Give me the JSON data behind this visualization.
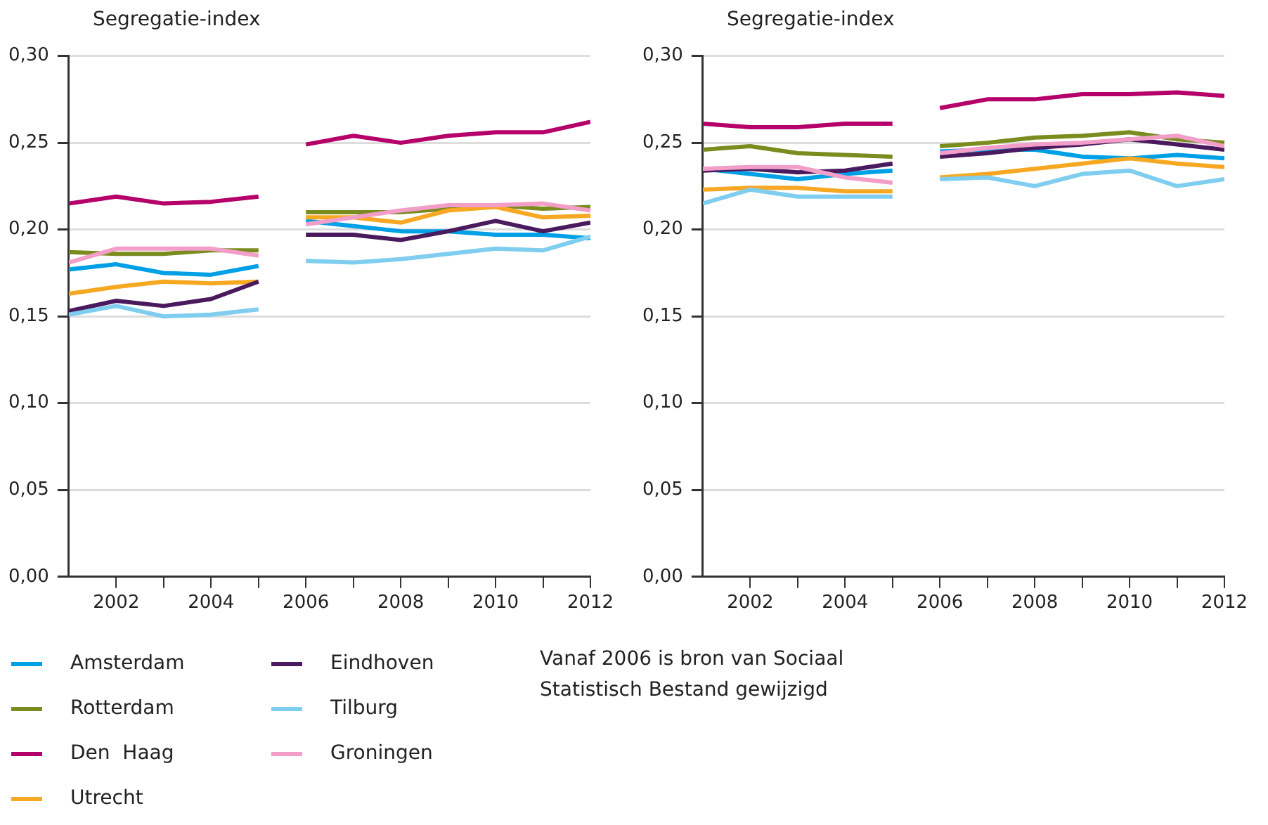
{
  "chart_data": [
    {
      "type": "line",
      "ylabel": "Segregatie-index",
      "x": [
        2001,
        2002,
        2003,
        2004,
        2005,
        2005.5,
        2006,
        2007,
        2008,
        2009,
        2010,
        2011,
        2012
      ],
      "xlim": [
        2001,
        2012
      ],
      "xticks": [
        2002,
        {
          "value": 2003,
          "label": null
        },
        2004,
        {
          "value": 2005,
          "label": null
        },
        2006,
        {
          "value": 2007,
          "label": null
        },
        2008,
        {
          "value": 2009,
          "label": null
        },
        2010,
        {
          "value": 2011,
          "label": null
        },
        2012
      ],
      "ylim": [
        0,
        0.3
      ],
      "yticks": [
        {
          "value": 0,
          "label": "0,00"
        },
        {
          "value": 0.05,
          "label": "0,05"
        },
        {
          "value": 0.1,
          "label": "0,10"
        },
        {
          "value": 0.15,
          "label": "0,15"
        },
        {
          "value": 0.2,
          "label": "0,20"
        },
        {
          "value": 0.25,
          "label": "0,25"
        },
        {
          "value": 0.3,
          "label": "0,30"
        }
      ],
      "grid": "y",
      "legend": "bottom",
      "marker": "none",
      "line_style": "solid",
      "annotations": [
        "Vanaf 2006 is bron van Sociaal Statistisch Bestand gewijzigd"
      ],
      "series": [
        {
          "name": "Amsterdam",
          "color": "#00a0e6",
          "values": [
            0.177,
            0.18,
            0.175,
            0.174,
            0.179,
            null,
            0.205,
            0.202,
            0.199,
            0.199,
            0.197,
            0.197,
            0.195
          ]
        },
        {
          "name": "Rotterdam",
          "color": "#7a8c1e",
          "values": [
            0.187,
            0.186,
            0.186,
            0.188,
            0.188,
            null,
            0.21,
            0.21,
            0.21,
            0.212,
            0.214,
            0.212,
            0.213
          ]
        },
        {
          "name": "Den  Haag",
          "color": "#b5006a",
          "values": [
            0.215,
            0.219,
            0.215,
            0.216,
            0.219,
            null,
            0.249,
            0.254,
            0.25,
            0.254,
            0.256,
            0.256,
            0.262
          ]
        },
        {
          "name": "Utrecht",
          "color": "#f7a823",
          "values": [
            0.163,
            0.167,
            0.17,
            0.169,
            0.17,
            null,
            0.207,
            0.207,
            0.204,
            0.211,
            0.213,
            0.207,
            0.208
          ]
        },
        {
          "name": "Eindhoven",
          "color": "#4a1a5e",
          "values": [
            0.153,
            0.159,
            0.156,
            0.16,
            0.17,
            null,
            0.197,
            0.197,
            0.194,
            0.199,
            0.205,
            0.199,
            0.204
          ]
        },
        {
          "name": "Tilburg",
          "color": "#7fcdef",
          "values": [
            0.151,
            0.156,
            0.15,
            0.151,
            0.154,
            null,
            0.182,
            0.181,
            0.183,
            0.186,
            0.189,
            0.188,
            0.196
          ]
        },
        {
          "name": "Groningen",
          "color": "#f29ec8",
          "values": [
            0.181,
            0.189,
            0.189,
            0.189,
            0.185,
            null,
            0.203,
            0.207,
            0.211,
            0.214,
            0.214,
            0.215,
            0.211
          ]
        }
      ]
    },
    {
      "type": "line",
      "ylabel": "Segregatie-index",
      "x": [
        2001,
        2002,
        2003,
        2004,
        2005,
        2005.5,
        2006,
        2007,
        2008,
        2009,
        2010,
        2011,
        2012
      ],
      "xlim": [
        2001,
        2012
      ],
      "xticks": [
        2002,
        {
          "value": 2003,
          "label": null
        },
        2004,
        {
          "value": 2005,
          "label": null
        },
        2006,
        {
          "value": 2007,
          "label": null
        },
        2008,
        {
          "value": 2009,
          "label": null
        },
        2010,
        {
          "value": 2011,
          "label": null
        },
        2012
      ],
      "ylim": [
        0,
        0.3
      ],
      "yticks": [
        {
          "value": 0,
          "label": "0,00"
        },
        {
          "value": 0.05,
          "label": "0,05"
        },
        {
          "value": 0.1,
          "label": "0,10"
        },
        {
          "value": 0.15,
          "label": "0,15"
        },
        {
          "value": 0.2,
          "label": "0,20"
        },
        {
          "value": 0.25,
          "label": "0,25"
        },
        {
          "value": 0.3,
          "label": "0,30"
        }
      ],
      "grid": "y",
      "legend": false,
      "marker": "none",
      "line_style": "solid",
      "series": [
        {
          "color": "#00a0e6",
          "values": [
            0.235,
            0.232,
            0.229,
            0.232,
            0.234,
            null,
            0.245,
            0.246,
            0.246,
            0.242,
            0.241,
            0.243,
            0.241
          ]
        },
        {
          "color": "#7a8c1e",
          "values": [
            0.246,
            0.248,
            0.244,
            0.243,
            0.242,
            null,
            0.248,
            0.25,
            0.253,
            0.254,
            0.256,
            0.252,
            0.25
          ]
        },
        {
          "color": "#b5006a",
          "values": [
            0.261,
            0.259,
            0.259,
            0.261,
            0.261,
            null,
            0.27,
            0.275,
            0.275,
            0.278,
            0.278,
            0.279,
            0.277
          ]
        },
        {
          "color": "#f7a823",
          "values": [
            0.223,
            0.224,
            0.224,
            0.222,
            0.222,
            null,
            0.23,
            0.232,
            0.235,
            0.238,
            0.241,
            0.238,
            0.236
          ]
        },
        {
          "color": "#4a1a5e",
          "values": [
            0.234,
            0.235,
            0.233,
            0.234,
            0.238,
            null,
            0.242,
            0.244,
            0.247,
            0.249,
            0.252,
            0.249,
            0.246
          ]
        },
        {
          "color": "#7fcdef",
          "values": [
            0.215,
            0.223,
            0.219,
            0.219,
            0.219,
            null,
            0.229,
            0.23,
            0.225,
            0.232,
            0.234,
            0.225,
            0.229
          ]
        },
        {
          "color": "#f29ec8",
          "values": [
            0.235,
            0.236,
            0.236,
            0.23,
            0.227,
            null,
            0.244,
            0.247,
            0.249,
            0.25,
            0.252,
            0.254,
            0.248
          ]
        }
      ]
    }
  ]
}
